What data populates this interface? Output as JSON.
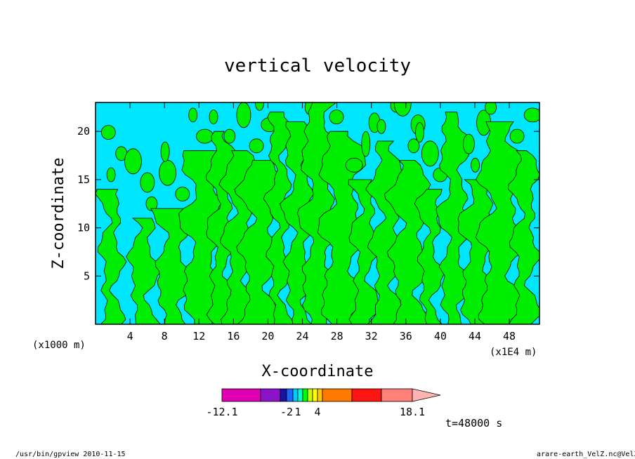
{
  "chart_data": {
    "type": "heatmap",
    "title": "vertical velocity",
    "xlabel": "X-coordinate",
    "ylabel": "Z-coordinate",
    "x_unit_left": "(x1000 m)",
    "x_unit_right": "(x1E4 m)",
    "xlim": [
      0,
      51.5
    ],
    "ylim": [
      0,
      23
    ],
    "x_ticks": [
      4,
      8,
      12,
      16,
      20,
      24,
      28,
      32,
      36,
      40,
      44,
      48
    ],
    "y_ticks": [
      5,
      10,
      15,
      20
    ],
    "colorbar": {
      "colors": [
        "#e000b4",
        "#8c14c8",
        "#1414a0",
        "#1e64ff",
        "#00c8ff",
        "#00ffc8",
        "#00ff00",
        "#c8ff00",
        "#ffff00",
        "#ffc800",
        "#ff7800",
        "#ff1414",
        "#ff8078",
        "#ffb4b4"
      ],
      "labels": [
        "-12.1",
        "-2",
        "1",
        "4",
        "18.1"
      ],
      "triangle_end": "right"
    },
    "field_colors": {
      "background": "#00e6ff",
      "band": "#00ee00",
      "contour": "#000000"
    },
    "annotation": "t=48000 s",
    "footer_left": "/usr/bin/gpview   2010-11-15",
    "footer_right": "arare-earth_VelZ.nc@VelZ",
    "pattern": {
      "description_bands": [
        1.8,
        5.5,
        9.0,
        12.5,
        14.6,
        16.7,
        19.0,
        21.3,
        23.6,
        25.9,
        28.6,
        31.2,
        33.8,
        36.4,
        38.8,
        41.6,
        44.4,
        47.0,
        49.8
      ],
      "band_heights": [
        14,
        11,
        12,
        18,
        20,
        18,
        17,
        22,
        21,
        23,
        20,
        15,
        19,
        17,
        14,
        22,
        15,
        21,
        18
      ]
    }
  }
}
